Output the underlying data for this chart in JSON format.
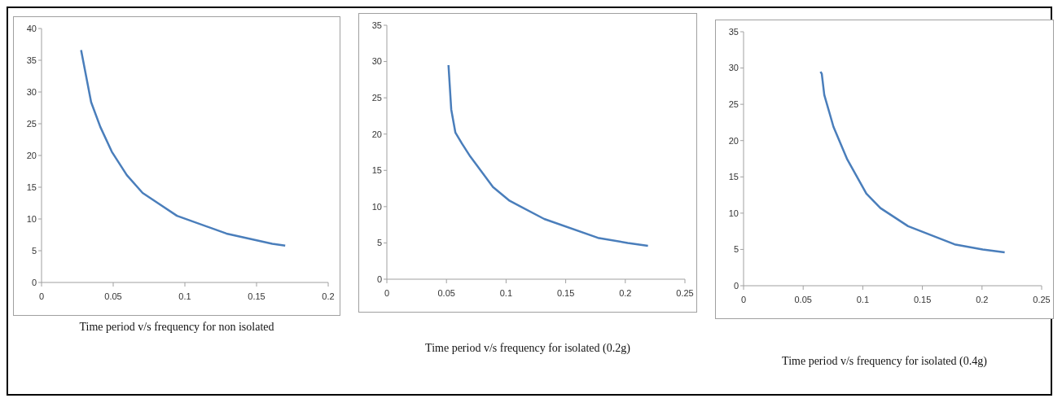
{
  "chart_data": [
    {
      "type": "line",
      "annotations": [
        "Time period v/s frequency for non isolated"
      ],
      "x": [
        0.0276,
        0.0346,
        0.041,
        0.049,
        0.0595,
        0.0705,
        0.0945,
        0.129,
        0.161,
        0.17
      ],
      "series": [
        {
          "color": "#4a7ebb",
          "values": [
            36.6,
            28.4,
            24.5,
            20.6,
            16.9,
            14.1,
            10.5,
            7.7,
            6.1,
            5.8
          ]
        }
      ],
      "xlim": [
        0,
        0.2
      ],
      "xticks": [
        0,
        0.05,
        0.1,
        0.15,
        0.2
      ],
      "ylim": [
        0,
        40
      ],
      "yticks": [
        0,
        5,
        10,
        15,
        20,
        25,
        30,
        35,
        40
      ],
      "grid": false,
      "legend": false,
      "marker": "none",
      "line_style": "solid"
    },
    {
      "type": "line",
      "annotations": [
        "Time period v/s frequency for isolated (0.2g)"
      ],
      "x": [
        0.0517,
        0.054,
        0.0575,
        0.063,
        0.07,
        0.089,
        0.103,
        0.132,
        0.177,
        0.202,
        0.219
      ],
      "series": [
        {
          "color": "#4a7ebb",
          "values": [
            29.5,
            23.4,
            20.2,
            18.7,
            16.9,
            12.7,
            10.8,
            8.3,
            5.7,
            5.0,
            4.6
          ]
        }
      ],
      "xlim": [
        0,
        0.25
      ],
      "xticks": [
        0,
        0.05,
        0.1,
        0.15,
        0.2,
        0.25
      ],
      "ylim": [
        0,
        35
      ],
      "yticks": [
        0,
        5,
        10,
        15,
        20,
        25,
        30,
        35
      ],
      "grid": false,
      "legend": false,
      "marker": "none",
      "line_style": "solid"
    },
    {
      "type": "line",
      "annotations": [
        "Time period v/s frequency for isolated (0.4g)"
      ],
      "x": [
        0.0645,
        0.0656,
        0.0677,
        0.0754,
        0.087,
        0.103,
        0.1148,
        0.138,
        0.177,
        0.2006,
        0.219
      ],
      "series": [
        {
          "color": "#4a7ebb",
          "values": [
            29.5,
            29.2,
            26.3,
            21.9,
            17.4,
            12.7,
            10.7,
            8.2,
            5.7,
            5.0,
            4.6
          ]
        }
      ],
      "xlim": [
        0,
        0.25
      ],
      "xticks": [
        0,
        0.05,
        0.1,
        0.15,
        0.2,
        0.25
      ],
      "ylim": [
        0,
        35
      ],
      "yticks": [
        0,
        5,
        10,
        15,
        20,
        25,
        30,
        35
      ],
      "grid": false,
      "legend": false,
      "marker": "none",
      "line_style": "solid"
    }
  ]
}
